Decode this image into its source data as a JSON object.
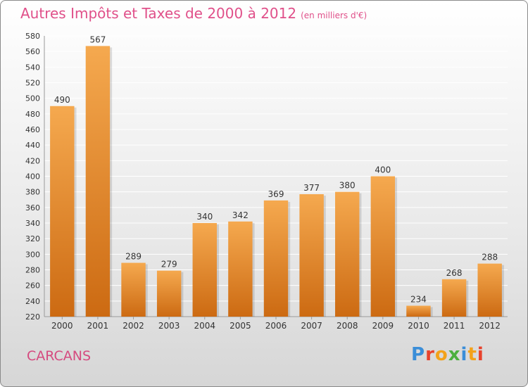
{
  "header": {
    "title": "Autres Impôts et Taxes de 2000 à 2012",
    "unit": "(en milliers d'€)"
  },
  "footer": {
    "commune": "CARCANS",
    "brand": "Proxiti"
  },
  "colors": {
    "title": "#e0508a",
    "bar_top": "#f5a94f",
    "bar_bottom": "#cc6a12",
    "brand_letters": [
      "#3b8ed8",
      "#e8422c",
      "#f3a21a",
      "#4caf3e",
      "#3b8ed8",
      "#f3a21a",
      "#e8422c"
    ]
  },
  "chart_data": {
    "type": "bar",
    "title": "Autres Impôts et Taxes de 2000 à 2012",
    "categories": [
      "2000",
      "2001",
      "2002",
      "2003",
      "2004",
      "2005",
      "2006",
      "2007",
      "2008",
      "2009",
      "2010",
      "2011",
      "2012"
    ],
    "values": [
      490,
      567,
      289,
      279,
      340,
      342,
      369,
      377,
      380,
      400,
      234,
      268,
      288
    ],
    "ylim": [
      220,
      580
    ],
    "ytick_step": 20,
    "grid": true
  }
}
